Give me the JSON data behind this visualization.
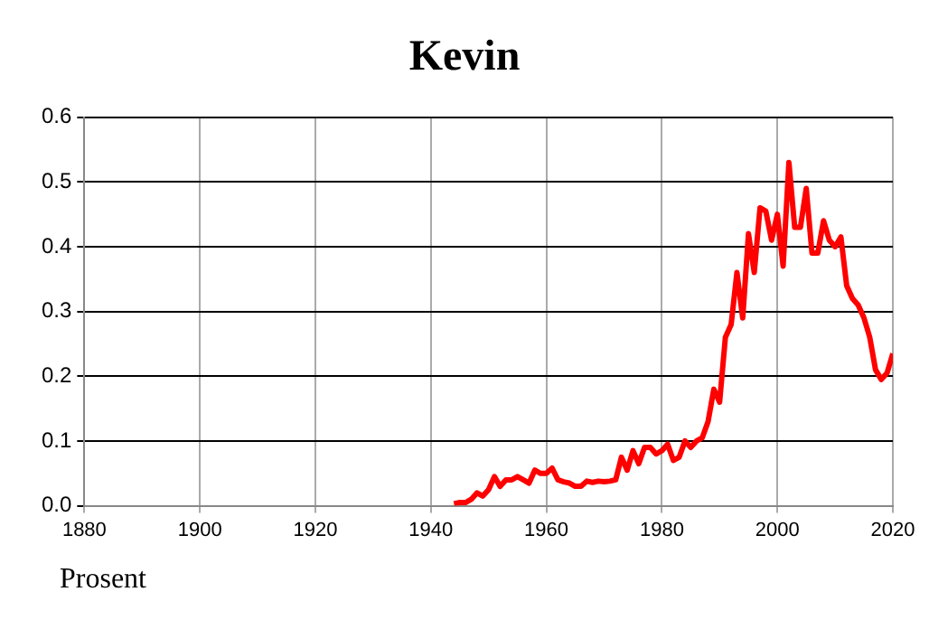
{
  "chart_data": {
    "type": "line",
    "title": "Kevin",
    "annotations": [
      "Prosent"
    ],
    "x": [
      1944,
      1945,
      1946,
      1947,
      1948,
      1949,
      1950,
      1951,
      1952,
      1953,
      1954,
      1955,
      1956,
      1957,
      1958,
      1959,
      1960,
      1961,
      1962,
      1963,
      1964,
      1965,
      1966,
      1967,
      1968,
      1969,
      1970,
      1971,
      1972,
      1973,
      1974,
      1975,
      1976,
      1977,
      1978,
      1979,
      1980,
      1981,
      1982,
      1983,
      1984,
      1985,
      1986,
      1987,
      1988,
      1989,
      1990,
      1991,
      1992,
      1993,
      1994,
      1995,
      1996,
      1997,
      1998,
      1999,
      2000,
      2001,
      2002,
      2003,
      2004,
      2005,
      2006,
      2007,
      2008,
      2009,
      2010,
      2011,
      2012,
      2013,
      2014,
      2015,
      2016,
      2017,
      2018,
      2019,
      2020
    ],
    "series": [
      {
        "color": "#ff0000",
        "values": [
          0.003,
          0.005,
          0.005,
          0.01,
          0.02,
          0.015,
          0.025,
          0.045,
          0.03,
          0.04,
          0.04,
          0.045,
          0.04,
          0.035,
          0.055,
          0.05,
          0.05,
          0.058,
          0.04,
          0.037,
          0.035,
          0.03,
          0.03,
          0.038,
          0.036,
          0.038,
          0.037,
          0.038,
          0.04,
          0.075,
          0.055,
          0.085,
          0.065,
          0.09,
          0.09,
          0.08,
          0.085,
          0.095,
          0.07,
          0.075,
          0.1,
          0.09,
          0.1,
          0.105,
          0.13,
          0.18,
          0.16,
          0.26,
          0.28,
          0.36,
          0.29,
          0.42,
          0.36,
          0.46,
          0.455,
          0.41,
          0.45,
          0.37,
          0.53,
          0.43,
          0.43,
          0.49,
          0.39,
          0.39,
          0.44,
          0.41,
          0.4,
          0.415,
          0.34,
          0.32,
          0.31,
          0.29,
          0.26,
          0.21,
          0.195,
          0.205,
          0.235
        ]
      }
    ],
    "xlim": [
      1880,
      2020
    ],
    "xticks": [
      1880,
      1900,
      1920,
      1940,
      1960,
      1980,
      2000,
      2020
    ],
    "ylim": [
      0,
      0.6
    ],
    "yticks": [
      {
        "value": 0,
        "label": "0.0"
      },
      {
        "value": 0.1,
        "label": "0.1"
      },
      {
        "value": 0.2,
        "label": "0.2"
      },
      {
        "value": 0.3,
        "label": "0.3"
      },
      {
        "value": 0.4,
        "label": "0.4"
      },
      {
        "value": 0.5,
        "label": "0.5"
      },
      {
        "value": 0.6,
        "label": "0.6"
      }
    ],
    "grid": true,
    "legend": false,
    "marker": "none",
    "line_style": "solid"
  }
}
